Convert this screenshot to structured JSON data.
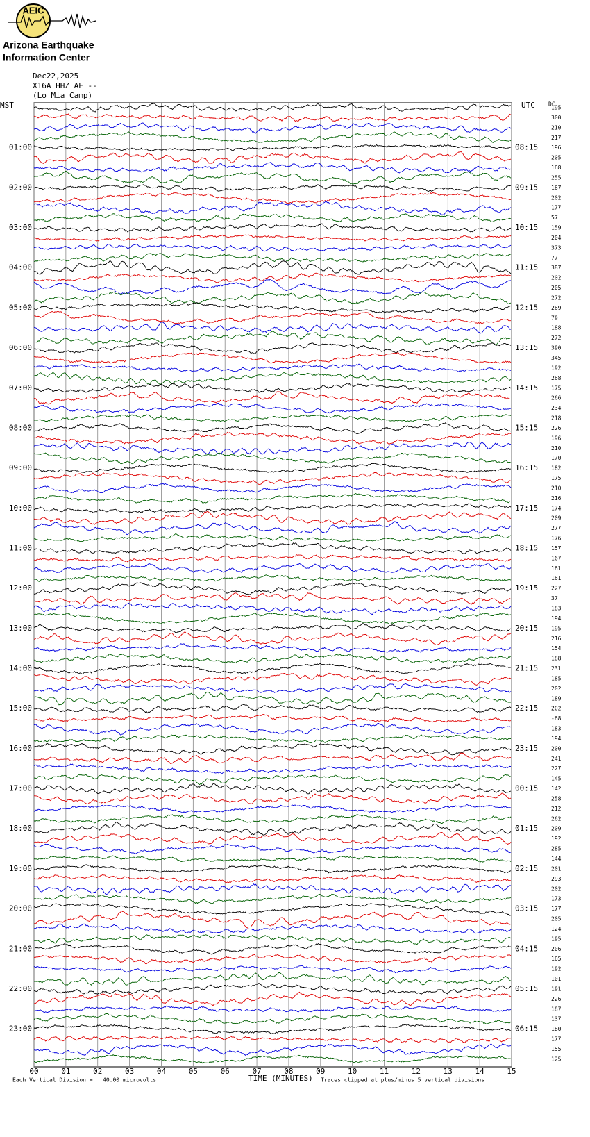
{
  "header": {
    "logo_text": "AEIC",
    "org_line1": "Arizona Earthquake",
    "org_line2": "Information Center",
    "date": "Dec22,2025",
    "station": "X16A HHZ AE --",
    "site": "(Lo Mia Camp)"
  },
  "plot": {
    "left_label": "MST",
    "right_label": "UTC",
    "dc_label": "DC",
    "left_times": [
      "01:00",
      "02:00",
      "03:00",
      "04:00",
      "05:00",
      "06:00",
      "07:00",
      "08:00",
      "09:00",
      "10:00",
      "11:00",
      "12:00",
      "13:00",
      "14:00",
      "15:00",
      "16:00",
      "17:00",
      "18:00",
      "19:00",
      "20:00",
      "21:00",
      "22:00",
      "23:00"
    ],
    "right_times": [
      "08:15",
      "09:15",
      "10:15",
      "11:15",
      "12:15",
      "13:15",
      "14:15",
      "15:15",
      "16:15",
      "17:15",
      "18:15",
      "19:15",
      "20:15",
      "21:15",
      "22:15",
      "23:15",
      "00:15",
      "01:15",
      "02:15",
      "03:15",
      "04:15",
      "05:15",
      "06:15"
    ],
    "x_ticks": [
      "00",
      "01",
      "02",
      "03",
      "04",
      "05",
      "06",
      "07",
      "08",
      "09",
      "10",
      "11",
      "12",
      "13",
      "14",
      "15"
    ],
    "x_title": "TIME (MINUTES)",
    "footer_left": "Each Vertical Division =   40.00 microvolts",
    "footer_right": "Traces clipped at plus/minus 5 vertical divisions",
    "trace_colors": [
      "#000000",
      "#e00000",
      "#0000e0",
      "#006000"
    ],
    "dc_values": [
      195,
      300,
      210,
      217,
      196,
      205,
      168,
      255,
      167,
      202,
      177,
      57,
      159,
      204,
      373,
      77,
      387,
      202,
      205,
      272,
      269,
      79,
      188,
      272,
      390,
      345,
      192,
      268,
      175,
      266,
      234,
      218,
      226,
      196,
      210,
      170,
      182,
      175,
      210,
      216,
      174,
      209,
      277,
      176,
      157,
      167,
      161,
      161,
      227,
      37,
      183,
      194,
      195,
      216,
      154,
      188,
      231,
      185,
      202,
      189,
      202,
      -68,
      183,
      194,
      200,
      241,
      227,
      145,
      142,
      258,
      212,
      262,
      209,
      192,
      285,
      144,
      201,
      293,
      202,
      173,
      177,
      205,
      124,
      195,
      206,
      165,
      192,
      101,
      191,
      226,
      187,
      137,
      180,
      177,
      155,
      125
    ]
  }
}
